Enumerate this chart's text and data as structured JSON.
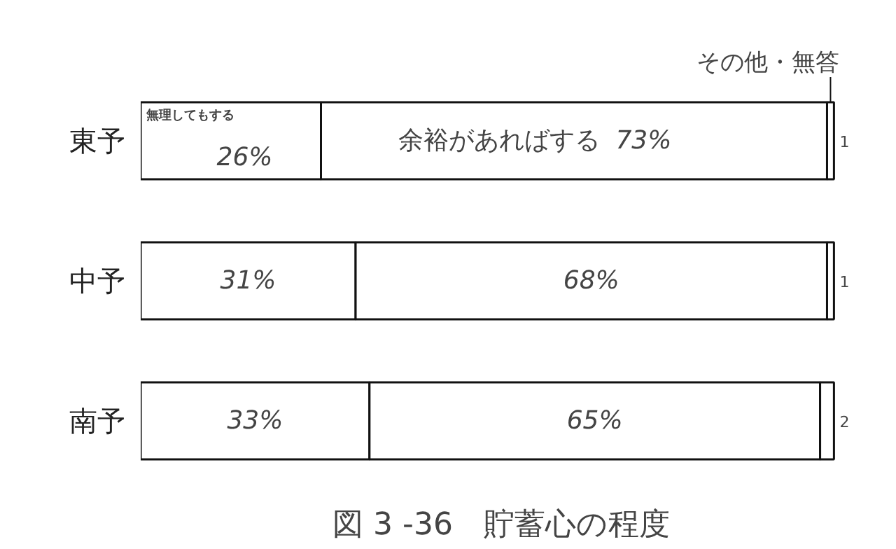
{
  "chart_data": {
    "type": "bar",
    "orientation": "horizontal",
    "stacked": true,
    "title": "図 3 -36　貯蓄心の程度",
    "categories": [
      "東予",
      "中予",
      "南予"
    ],
    "series": [
      {
        "name": "無理してもする",
        "color": "#ffffff",
        "values": [
          26,
          31,
          33
        ],
        "value_labels": [
          "26%",
          "31%",
          "33%"
        ]
      },
      {
        "name": "余裕があればする",
        "color": "#ffffff",
        "values": [
          73,
          68,
          65
        ],
        "value_labels": [
          "73%",
          "68%",
          "65%"
        ]
      },
      {
        "name": "その他・無答",
        "color": "#ffffff",
        "values": [
          1,
          1,
          2
        ],
        "value_labels": [
          "1",
          "1",
          "2"
        ]
      }
    ]
  }
}
